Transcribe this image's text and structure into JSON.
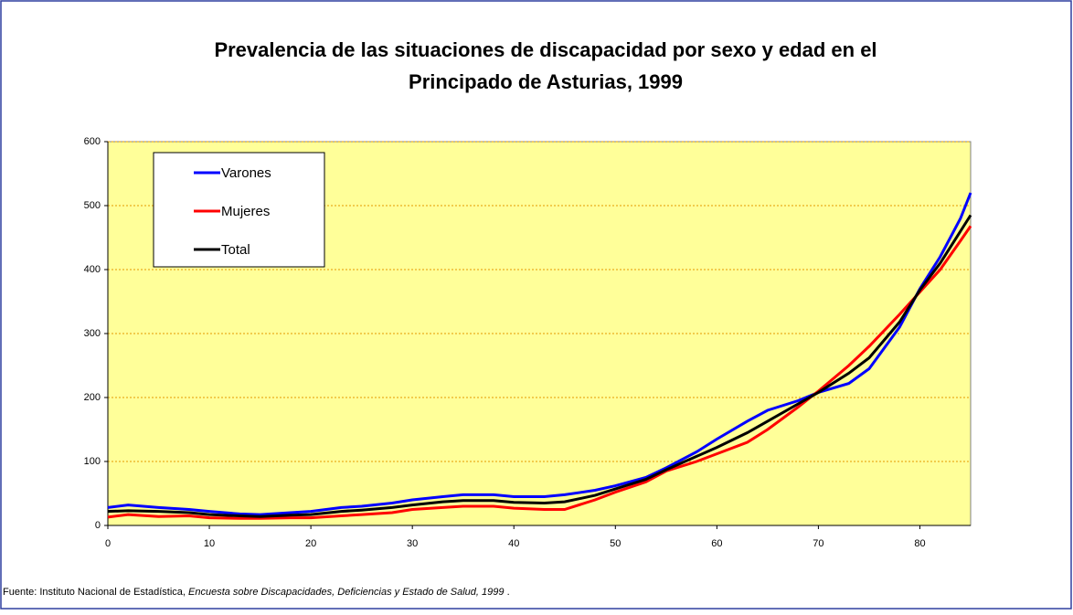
{
  "chart_data": {
    "type": "line",
    "title": [
      "Prevalencia de las situaciones de discapacidad por sexo y edad en el",
      "Principado de Asturias, 1999"
    ],
    "source": "Fuente: Instituto Nacional de Estadística, ",
    "source_title": "Encuesta sobre Discapacidades, Deficiencias y Estado de Salud, 1999",
    "source_end": " .",
    "x": [
      0,
      2,
      5,
      8,
      10,
      13,
      15,
      18,
      20,
      23,
      25,
      28,
      30,
      33,
      35,
      38,
      40,
      43,
      45,
      48,
      50,
      53,
      55,
      58,
      60,
      63,
      65,
      68,
      70,
      73,
      75,
      78,
      80,
      82,
      84,
      85
    ],
    "series": [
      {
        "name": "Varones",
        "color": "#0000ff",
        "values": [
          28,
          32,
          28,
          25,
          22,
          18,
          17,
          20,
          22,
          28,
          30,
          35,
          40,
          45,
          48,
          48,
          45,
          45,
          48,
          55,
          62,
          75,
          90,
          115,
          135,
          163,
          180,
          195,
          208,
          222,
          245,
          310,
          370,
          420,
          480,
          520
        ]
      },
      {
        "name": "Mujeres",
        "color": "#ff0000",
        "values": [
          13,
          17,
          14,
          15,
          12,
          11,
          11,
          12,
          12,
          15,
          17,
          20,
          25,
          28,
          30,
          30,
          27,
          25,
          25,
          40,
          52,
          68,
          85,
          100,
          112,
          130,
          150,
          185,
          210,
          250,
          280,
          330,
          365,
          400,
          445,
          468
        ]
      },
      {
        "name": "Total",
        "color": "#000000",
        "values": [
          22,
          23,
          22,
          20,
          17,
          15,
          14,
          16,
          17,
          22,
          24,
          28,
          32,
          37,
          39,
          39,
          36,
          35,
          37,
          47,
          57,
          72,
          87,
          108,
          122,
          145,
          163,
          190,
          208,
          238,
          262,
          318,
          368,
          410,
          460,
          485
        ]
      }
    ],
    "xlim": [
      0,
      85
    ],
    "xticks": [
      0,
      10,
      20,
      30,
      40,
      50,
      60,
      70,
      80
    ],
    "ylim": [
      0,
      600
    ],
    "yticks": [
      0,
      100,
      200,
      300,
      400,
      500,
      600
    ],
    "grid": true,
    "legend": "upper left",
    "background": "#ffff99",
    "grid_color": "#e69900"
  }
}
